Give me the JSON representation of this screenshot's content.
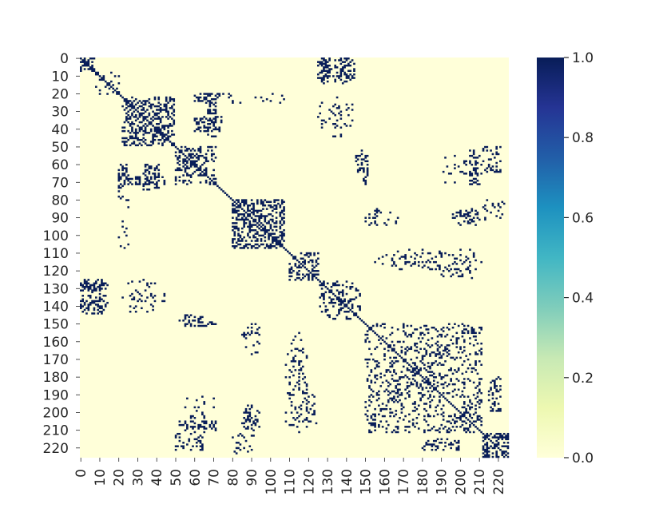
{
  "chart_data": {
    "type": "heatmap",
    "title": "",
    "xlabel": "",
    "ylabel": "",
    "n": 226,
    "value_range": [
      0.0,
      1.0
    ],
    "colormap": "YlGnBu",
    "colormap_stops": [
      "#ffffd9",
      "#edf8b1",
      "#c7e9b4",
      "#7fcdbb",
      "#41b6c4",
      "#1d91c0",
      "#225ea8",
      "#253494",
      "#081d58"
    ],
    "x_tick_labels": [
      "0",
      "10",
      "20",
      "30",
      "40",
      "50",
      "60",
      "70",
      "80",
      "90",
      "100",
      "110",
      "120",
      "130",
      "140",
      "150",
      "160",
      "170",
      "180",
      "190",
      "200",
      "210",
      "220"
    ],
    "y_tick_labels": [
      "0",
      "10",
      "20",
      "30",
      "40",
      "50",
      "60",
      "70",
      "80",
      "90",
      "100",
      "110",
      "120",
      "130",
      "140",
      "150",
      "160",
      "170",
      "180",
      "190",
      "200",
      "210",
      "220"
    ],
    "colorbar_ticks": [
      "0.0",
      "0.2",
      "0.4",
      "0.6",
      "0.8",
      "1.0"
    ],
    "colorbar_tick_values": [
      0.0,
      0.2,
      0.4,
      0.6,
      0.8,
      1.0
    ],
    "diagonal_value": 1.0,
    "blocks": [
      {
        "start": 0,
        "end": 8,
        "density": 0.45
      },
      {
        "start": 8,
        "end": 22,
        "density": 0.25
      },
      {
        "start": 22,
        "end": 50,
        "density": 0.35
      },
      {
        "start": 50,
        "end": 72,
        "density": 0.3
      },
      {
        "start": 80,
        "end": 108,
        "density": 0.45
      },
      {
        "start": 110,
        "end": 126,
        "density": 0.3
      },
      {
        "start": 126,
        "end": 148,
        "density": 0.25
      },
      {
        "start": 150,
        "end": 212,
        "density": 0.18
      },
      {
        "start": 212,
        "end": 226,
        "density": 0.45
      }
    ],
    "off_block_links": [
      {
        "rows": [
          0,
          12
        ],
        "cols": [
          125,
          132
        ],
        "density": 0.35
      },
      {
        "rows": [
          0,
          12
        ],
        "cols": [
          137,
          142
        ],
        "density": 0.25
      },
      {
        "rows": [
          20,
          45
        ],
        "cols": [
          66,
          72
        ],
        "density": 0.4
      },
      {
        "rows": [
          20,
          45
        ],
        "cols": [
          132,
          138
        ],
        "density": 0.12
      },
      {
        "rows": [
          20,
          26
        ],
        "cols": [
          75,
          108
        ],
        "density": 0.08
      },
      {
        "rows": [
          60,
          75
        ],
        "cols": [
          20,
          25
        ],
        "density": 0.35
      },
      {
        "rows": [
          60,
          75
        ],
        "cols": [
          33,
          42
        ],
        "density": 0.4
      },
      {
        "rows": [
          52,
          72
        ],
        "cols": [
          148,
          152
        ],
        "density": 0.3
      },
      {
        "rows": [
          52,
          72
        ],
        "cols": [
          205,
          210
        ],
        "density": 0.3
      },
      {
        "rows": [
          85,
          95
        ],
        "cols": [
          150,
          157
        ],
        "density": 0.15
      },
      {
        "rows": [
          85,
          95
        ],
        "cols": [
          200,
          215
        ],
        "density": 0.15
      },
      {
        "rows": [
          108,
          120
        ],
        "cols": [
          155,
          212
        ],
        "density": 0.06
      },
      {
        "rows": [
          125,
          145
        ],
        "cols": [
          0,
          15
        ],
        "density": 0.25
      },
      {
        "rows": [
          125,
          145
        ],
        "cols": [
          25,
          40
        ],
        "density": 0.12
      },
      {
        "rows": [
          145,
          148
        ],
        "cols": [
          55,
          65
        ],
        "density": 0.3
      },
      {
        "rows": [
          150,
          168
        ],
        "cols": [
          85,
          95
        ],
        "density": 0.1
      },
      {
        "rows": [
          165,
          190
        ],
        "cols": [
          110,
          120
        ],
        "density": 0.15
      },
      {
        "rows": [
          190,
          212
        ],
        "cols": [
          55,
          72
        ],
        "density": 0.1
      },
      {
        "rows": [
          195,
          210
        ],
        "cols": [
          85,
          95
        ],
        "density": 0.15
      },
      {
        "rows": [
          190,
          210
        ],
        "cols": [
          110,
          125
        ],
        "density": 0.15
      },
      {
        "rows": [
          180,
          200
        ],
        "cols": [
          215,
          222
        ],
        "density": 0.3
      },
      {
        "rows": [
          212,
          222
        ],
        "cols": [
          50,
          65
        ],
        "density": 0.2
      },
      {
        "rows": [
          212,
          224
        ],
        "cols": [
          80,
          92
        ],
        "density": 0.15
      }
    ]
  }
}
